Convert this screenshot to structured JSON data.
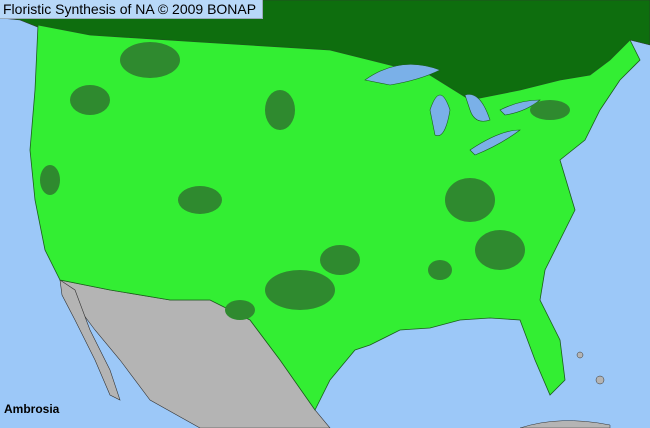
{
  "header": {
    "title": "Floristic Synthesis of NA © 2009 BONAP"
  },
  "map": {
    "taxon": "Ambrosia",
    "colors": {
      "water": "#9cc8f8",
      "canada": "#0e6e0e",
      "us_present": "#33ee33",
      "us_native_dark": "#2f8a2f",
      "mexico": "#b4b4b4",
      "borders": "#333333"
    }
  }
}
